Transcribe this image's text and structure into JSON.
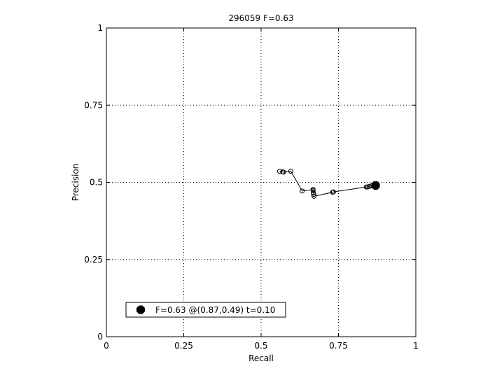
{
  "chart_data": {
    "type": "line",
    "title": "296059 F=0.63",
    "xlabel": "Recall",
    "ylabel": "Precision",
    "xlim": [
      0,
      1
    ],
    "ylim": [
      0,
      1
    ],
    "grid": true,
    "x_ticks": [
      {
        "value": 0,
        "label": "0"
      },
      {
        "value": 0.25,
        "label": "0.25"
      },
      {
        "value": 0.5,
        "label": "0.5"
      },
      {
        "value": 0.75,
        "label": "0.75"
      },
      {
        "value": 1,
        "label": "1"
      }
    ],
    "y_ticks": [
      {
        "value": 0,
        "label": "0"
      },
      {
        "value": 0.25,
        "label": "0.25"
      },
      {
        "value": 0.5,
        "label": "0.5"
      },
      {
        "value": 0.75,
        "label": "0.75"
      },
      {
        "value": 1,
        "label": "1"
      }
    ],
    "series": [
      {
        "color": "#000000",
        "marker": "open-circle",
        "points": [
          {
            "x": 0.56,
            "y": 0.536
          },
          {
            "x": 0.57,
            "y": 0.534
          },
          {
            "x": 0.573,
            "y": 0.533
          },
          {
            "x": 0.596,
            "y": 0.536
          },
          {
            "x": 0.633,
            "y": 0.472
          },
          {
            "x": 0.668,
            "y": 0.477
          },
          {
            "x": 0.668,
            "y": 0.474
          },
          {
            "x": 0.669,
            "y": 0.467
          },
          {
            "x": 0.67,
            "y": 0.461
          },
          {
            "x": 0.671,
            "y": 0.455
          },
          {
            "x": 0.731,
            "y": 0.468
          },
          {
            "x": 0.734,
            "y": 0.469
          },
          {
            "x": 0.84,
            "y": 0.485
          },
          {
            "x": 0.844,
            "y": 0.485
          },
          {
            "x": 0.85,
            "y": 0.487
          },
          {
            "x": 0.857,
            "y": 0.489
          },
          {
            "x": 0.864,
            "y": 0.492
          }
        ]
      }
    ],
    "best_point": {
      "x": 0.87,
      "y": 0.49,
      "color": "#000000",
      "marker": "filled-octagon"
    },
    "legend": {
      "placement": "bottom-left",
      "label": "F=0.63 @(0.87,0.49) t=0.10"
    }
  }
}
